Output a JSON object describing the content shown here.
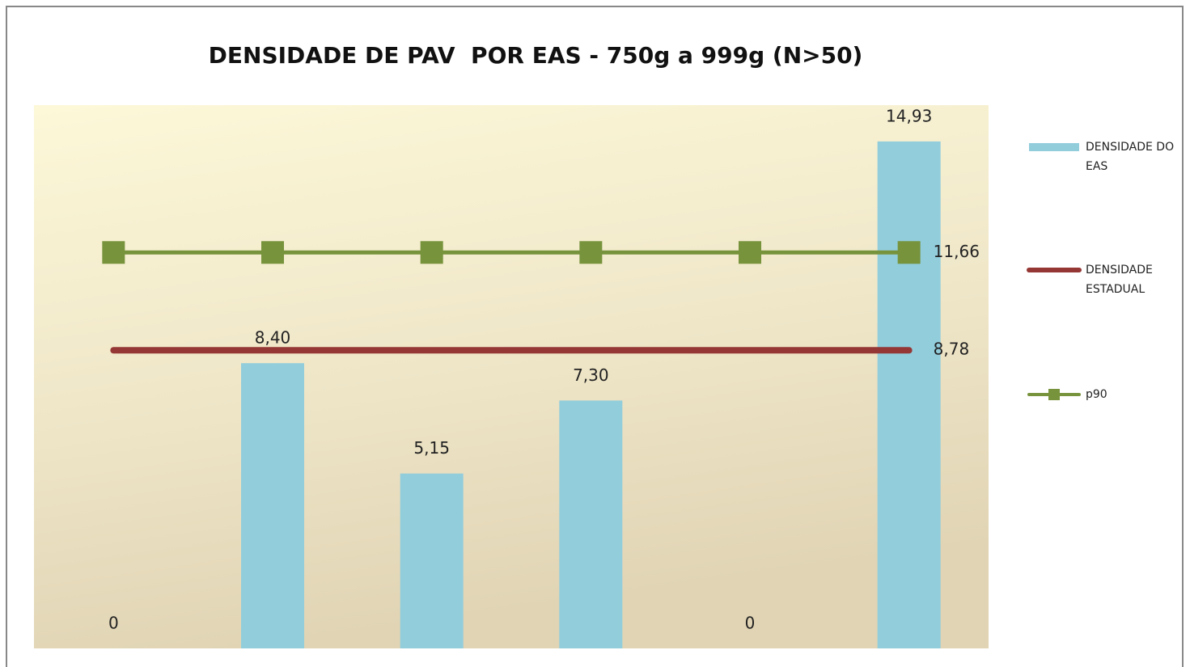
{
  "chart_data": {
    "type": "bar",
    "title": "DENSIDADE DE PAV  POR EAS - 750g a 999g (N>50)",
    "categories": [
      null,
      null,
      null,
      null,
      null,
      null
    ],
    "ylim": [
      0,
      16
    ],
    "legend": "right",
    "series": [
      {
        "name": "DENSIDADE DO EAS",
        "type": "bar",
        "color": "#92cddc",
        "values": [
          0,
          8.4,
          5.15,
          7.3,
          0,
          14.93
        ],
        "value_labels": [
          "0",
          "8,40",
          "5,15",
          "7,30",
          "0",
          "14,93"
        ]
      },
      {
        "name": "DENSIDADE ESTADUAL",
        "type": "line",
        "color": "#953735",
        "values": [
          8.78,
          8.78,
          8.78,
          8.78,
          8.78,
          8.78
        ],
        "value_labels": [
          null,
          null,
          null,
          null,
          null,
          "8,78"
        ]
      },
      {
        "name": "p90",
        "type": "line",
        "marker": "square",
        "color": "#77933c",
        "values": [
          11.66,
          11.66,
          11.66,
          11.66,
          11.66,
          11.66
        ],
        "value_labels": [
          null,
          null,
          null,
          null,
          null,
          "11,66"
        ]
      }
    ]
  }
}
